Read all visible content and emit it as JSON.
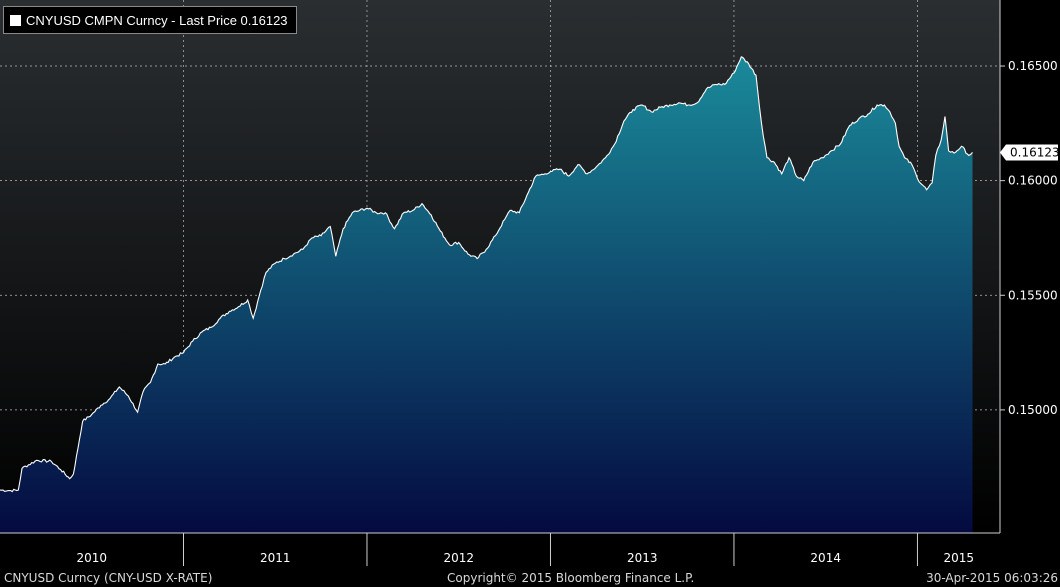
{
  "legend": {
    "text": "CNYUSD CMPN Curncy - Last Price 0.16123"
  },
  "footer": {
    "left": "CNYUSD Curncy (CNY-USD X-RATE)",
    "center": "Copyright© 2015 Bloomberg Finance L.P.",
    "right": "30-Apr-2015 06:03:26"
  },
  "colors": {
    "fill_top": "#1a8a9a",
    "fill_bottom": "#040a40",
    "line": "#ffffff",
    "background_top": "#2a2e31",
    "background_bottom": "#000000",
    "grid": "#bbbbbb",
    "price_badge": "#ffffff"
  },
  "chart_data": {
    "type": "area",
    "title": "CNYUSD CMPN Curncy - Last Price 0.16123",
    "series": [
      {
        "name": "CNYUSD CMPN Curncy - Last Price",
        "points": [
          [
            2010.0,
            0.1465
          ],
          [
            2010.05,
            0.14648
          ],
          [
            2010.1,
            0.1465
          ],
          [
            2010.12,
            0.14745
          ],
          [
            2010.2,
            0.1478
          ],
          [
            2010.28,
            0.14775
          ],
          [
            2010.33,
            0.1474
          ],
          [
            2010.38,
            0.147
          ],
          [
            2010.4,
            0.1472
          ],
          [
            2010.45,
            0.1495
          ],
          [
            2010.5,
            0.1498
          ],
          [
            2010.55,
            0.1502
          ],
          [
            2010.6,
            0.1505
          ],
          [
            2010.65,
            0.151
          ],
          [
            2010.7,
            0.1506
          ],
          [
            2010.75,
            0.1499
          ],
          [
            2010.78,
            0.1508
          ],
          [
            2010.82,
            0.1512
          ],
          [
            2010.86,
            0.152
          ],
          [
            2010.9,
            0.152
          ],
          [
            2010.95,
            0.1523
          ],
          [
            2011.0,
            0.1525
          ],
          [
            2011.05,
            0.153
          ],
          [
            2011.1,
            0.1534
          ],
          [
            2011.15,
            0.1536
          ],
          [
            2011.2,
            0.154
          ],
          [
            2011.25,
            0.1543
          ],
          [
            2011.3,
            0.1545
          ],
          [
            2011.35,
            0.1548
          ],
          [
            2011.38,
            0.154
          ],
          [
            2011.42,
            0.1552
          ],
          [
            2011.45,
            0.156
          ],
          [
            2011.5,
            0.1564
          ],
          [
            2011.55,
            0.1566
          ],
          [
            2011.6,
            0.1568
          ],
          [
            2011.65,
            0.157
          ],
          [
            2011.7,
            0.1575
          ],
          [
            2011.75,
            0.1576
          ],
          [
            2011.8,
            0.158
          ],
          [
            2011.83,
            0.1567
          ],
          [
            2011.87,
            0.1579
          ],
          [
            2011.92,
            0.1586
          ],
          [
            2011.96,
            0.1587
          ],
          [
            2012.0,
            0.1588
          ],
          [
            2012.05,
            0.1586
          ],
          [
            2012.1,
            0.1586
          ],
          [
            2012.15,
            0.1579
          ],
          [
            2012.2,
            0.1586
          ],
          [
            2012.25,
            0.1587
          ],
          [
            2012.3,
            0.159
          ],
          [
            2012.35,
            0.1585
          ],
          [
            2012.4,
            0.1578
          ],
          [
            2012.45,
            0.1572
          ],
          [
            2012.5,
            0.1573
          ],
          [
            2012.55,
            0.1568
          ],
          [
            2012.6,
            0.1566
          ],
          [
            2012.65,
            0.157
          ],
          [
            2012.7,
            0.1576
          ],
          [
            2012.75,
            0.1583
          ],
          [
            2012.78,
            0.1587
          ],
          [
            2012.83,
            0.1586
          ],
          [
            2012.88,
            0.1595
          ],
          [
            2012.92,
            0.1602
          ],
          [
            2012.97,
            0.1603
          ],
          [
            2013.0,
            0.1604
          ],
          [
            2013.05,
            0.1605
          ],
          [
            2013.1,
            0.1602
          ],
          [
            2013.15,
            0.1607
          ],
          [
            2013.2,
            0.1603
          ],
          [
            2013.25,
            0.1606
          ],
          [
            2013.3,
            0.161
          ],
          [
            2013.35,
            0.1616
          ],
          [
            2013.4,
            0.1626
          ],
          [
            2013.45,
            0.1631
          ],
          [
            2013.5,
            0.1633
          ],
          [
            2013.55,
            0.163
          ],
          [
            2013.6,
            0.1632
          ],
          [
            2013.65,
            0.1633
          ],
          [
            2013.7,
            0.1634
          ],
          [
            2013.75,
            0.1633
          ],
          [
            2013.8,
            0.1634
          ],
          [
            2013.85,
            0.164
          ],
          [
            2013.9,
            0.1642
          ],
          [
            2013.95,
            0.1642
          ],
          [
            2014.0,
            0.1647
          ],
          [
            2014.04,
            0.1654
          ],
          [
            2014.08,
            0.1651
          ],
          [
            2014.12,
            0.1646
          ],
          [
            2014.15,
            0.1625
          ],
          [
            2014.18,
            0.161
          ],
          [
            2014.22,
            0.1608
          ],
          [
            2014.26,
            0.1603
          ],
          [
            2014.3,
            0.161
          ],
          [
            2014.34,
            0.1602
          ],
          [
            2014.38,
            0.16
          ],
          [
            2014.43,
            0.1608
          ],
          [
            2014.48,
            0.161
          ],
          [
            2014.53,
            0.1613
          ],
          [
            2014.58,
            0.1616
          ],
          [
            2014.63,
            0.1624
          ],
          [
            2014.68,
            0.1627
          ],
          [
            2014.73,
            0.1629
          ],
          [
            2014.78,
            0.1633
          ],
          [
            2014.82,
            0.1633
          ],
          [
            2014.85,
            0.163
          ],
          [
            2014.88,
            0.1625
          ],
          [
            2014.9,
            0.1615
          ],
          [
            2014.93,
            0.161
          ],
          [
            2014.97,
            0.1607
          ],
          [
            2015.0,
            0.1601
          ],
          [
            2015.05,
            0.1596
          ],
          [
            2015.08,
            0.1599
          ],
          [
            2015.1,
            0.1611
          ],
          [
            2015.13,
            0.1618
          ],
          [
            2015.15,
            0.1628
          ],
          [
            2015.17,
            0.1613
          ],
          [
            2015.2,
            0.1612
          ],
          [
            2015.24,
            0.1615
          ],
          [
            2015.28,
            0.1611
          ],
          [
            2015.3,
            0.16123
          ]
        ]
      }
    ],
    "x_ticks": [
      2010,
      2011,
      2012,
      2013,
      2014,
      2015
    ],
    "xlim": [
      2010.0,
      2015.33
    ],
    "y_ticks": [
      0.15,
      0.155,
      0.16,
      0.165
    ],
    "ylim": [
      0.14463,
      0.16788
    ],
    "y_tick_labels": [
      "0.15000",
      "0.15500",
      "0.16000",
      "0.16500"
    ],
    "x_tick_labels": [
      "2010",
      "2011",
      "2012",
      "2013",
      "2014",
      "2015"
    ],
    "last_price_label": "0.16123",
    "last_price_value": 0.16123,
    "grid": true,
    "legend_position": "top-left"
  }
}
